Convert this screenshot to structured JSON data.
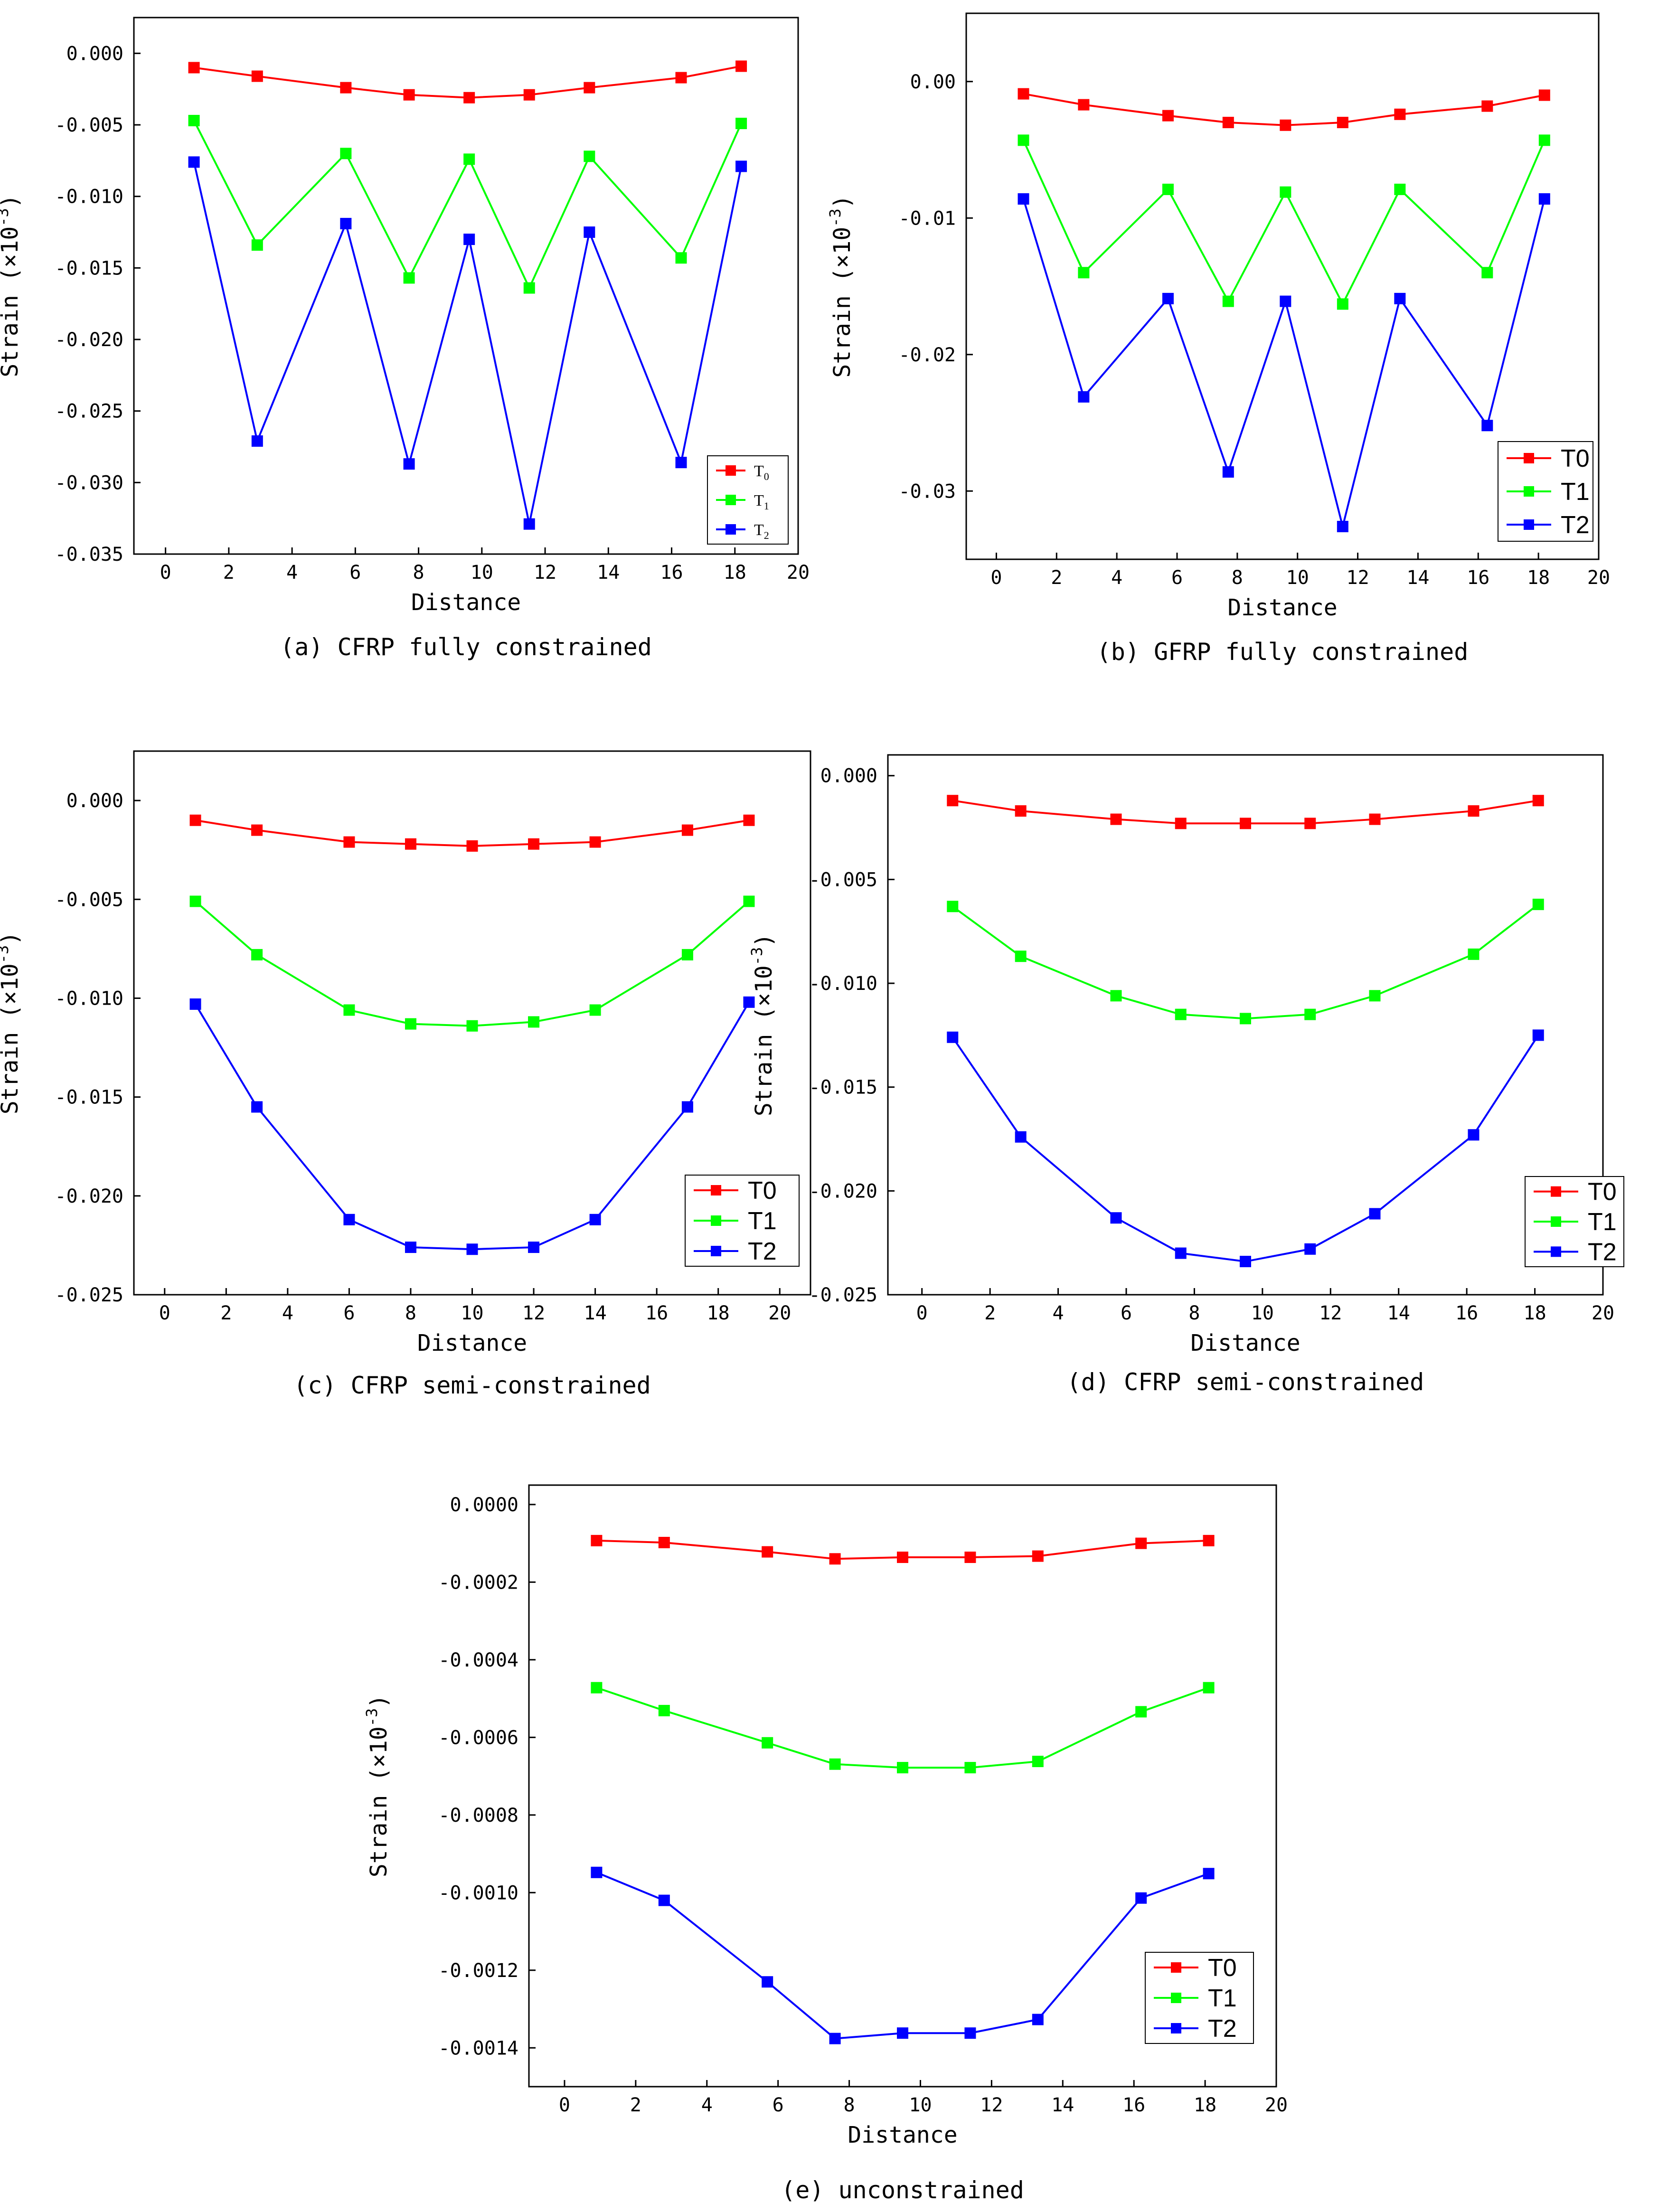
{
  "chart_data": [
    {
      "id": "a",
      "type": "line",
      "caption": "(a) CFRP fully constrained",
      "xlabel": "Distance",
      "ylabel": "Strain",
      "ylabel_unit": "(×10",
      "ylabel_exp": "-3",
      "ylabel_close": ")",
      "xlim": [
        -1,
        20
      ],
      "ylim": [
        -0.035,
        0.0025
      ],
      "xticks": [
        0,
        2,
        4,
        6,
        8,
        10,
        12,
        14,
        16,
        18,
        20
      ],
      "xtick_labels": [
        "0",
        "2",
        "4",
        "6",
        "8",
        "10",
        "12",
        "14",
        "16",
        "18",
        "20"
      ],
      "yticks": [
        0,
        -0.005,
        -0.01,
        -0.015,
        -0.02,
        -0.025,
        -0.03,
        -0.035
      ],
      "ytick_labels": [
        "0.000",
        "-0.005",
        "-0.010",
        "-0.015",
        "-0.020",
        "-0.025",
        "-0.030",
        "-0.035"
      ],
      "x": [
        0.9,
        2.9,
        5.7,
        7.7,
        9.6,
        11.5,
        13.4,
        16.3,
        18.2
      ],
      "series": [
        {
          "name": "T0",
          "legend_main": "T",
          "legend_sub": "0",
          "color": "#ff0000",
          "values": [
            -0.001,
            -0.0016,
            -0.0024,
            -0.0029,
            -0.0031,
            -0.0029,
            -0.0024,
            -0.0017,
            -0.0009
          ]
        },
        {
          "name": "T1",
          "legend_main": "T",
          "legend_sub": "1",
          "color": "#00ff00",
          "values": [
            -0.0047,
            -0.0134,
            -0.007,
            -0.0157,
            -0.0074,
            -0.0164,
            -0.0072,
            -0.0143,
            -0.0049
          ]
        },
        {
          "name": "T2",
          "legend_main": "T",
          "legend_sub": "2",
          "color": "#0000ff",
          "values": [
            -0.0076,
            -0.0271,
            -0.0119,
            -0.0287,
            -0.013,
            -0.0329,
            -0.0125,
            -0.0286,
            -0.0079
          ]
        }
      ],
      "legend_style": "subscript",
      "legend": "bottom-right"
    },
    {
      "id": "b",
      "type": "line",
      "caption": "(b) GFRP fully constrained",
      "xlabel": "Distance",
      "ylabel": "Strain",
      "ylabel_unit": "(×10",
      "ylabel_exp": "-3",
      "ylabel_close": ")",
      "xlim": [
        -1,
        20
      ],
      "ylim": [
        -0.035,
        0.005
      ],
      "xticks": [
        0,
        2,
        4,
        6,
        8,
        10,
        12,
        14,
        16,
        18,
        20
      ],
      "xtick_labels": [
        "0",
        "2",
        "4",
        "6",
        "8",
        "10",
        "12",
        "14",
        "16",
        "18",
        "20"
      ],
      "yticks": [
        0,
        -0.01,
        -0.02,
        -0.03
      ],
      "ytick_labels": [
        "0.00",
        "-0.01",
        "-0.02",
        "-0.03"
      ],
      "x": [
        0.9,
        2.9,
        5.7,
        7.7,
        9.6,
        11.5,
        13.4,
        16.3,
        18.2
      ],
      "series": [
        {
          "name": "T0",
          "color": "#ff0000",
          "values": [
            -0.0009,
            -0.0017,
            -0.0025,
            -0.003,
            -0.0032,
            -0.003,
            -0.0024,
            -0.0018,
            -0.001
          ]
        },
        {
          "name": "T1",
          "color": "#00ff00",
          "values": [
            -0.0043,
            -0.014,
            -0.0079,
            -0.0161,
            -0.0081,
            -0.0163,
            -0.0079,
            -0.014,
            -0.0043
          ]
        },
        {
          "name": "T2",
          "color": "#0000ff",
          "values": [
            -0.0086,
            -0.0231,
            -0.0159,
            -0.0286,
            -0.0161,
            -0.0326,
            -0.0159,
            -0.0252,
            -0.0086
          ]
        }
      ],
      "legend_style": "plain",
      "legend": "bottom-right"
    },
    {
      "id": "c",
      "type": "line",
      "caption": "(c) CFRP semi-constrained",
      "xlabel": "Distance",
      "ylabel": "Strain",
      "ylabel_unit": "(×10",
      "ylabel_exp": "-3",
      "ylabel_close": ")",
      "xlim": [
        -1,
        21
      ],
      "ylim": [
        -0.025,
        0.0025
      ],
      "xticks": [
        0,
        2,
        4,
        6,
        8,
        10,
        12,
        14,
        16,
        18,
        20
      ],
      "xtick_labels": [
        "0",
        "2",
        "4",
        "6",
        "8",
        "10",
        "12",
        "14",
        "16",
        "18",
        "20"
      ],
      "yticks": [
        0,
        -0.005,
        -0.01,
        -0.015,
        -0.02,
        -0.025
      ],
      "ytick_labels": [
        "0.000",
        "-0.005",
        "-0.010",
        "-0.015",
        "-0.020",
        "-0.025"
      ],
      "x": [
        1,
        3,
        6,
        8,
        10,
        12,
        14,
        17,
        19
      ],
      "series": [
        {
          "name": "T0",
          "color": "#ff0000",
          "values": [
            -0.001,
            -0.0015,
            -0.0021,
            -0.0022,
            -0.0023,
            -0.0022,
            -0.0021,
            -0.0015,
            -0.001
          ]
        },
        {
          "name": "T1",
          "color": "#00ff00",
          "values": [
            -0.0051,
            -0.0078,
            -0.0106,
            -0.0113,
            -0.0114,
            -0.0112,
            -0.0106,
            -0.0078,
            -0.0051
          ]
        },
        {
          "name": "T2",
          "color": "#0000ff",
          "values": [
            -0.0103,
            -0.0155,
            -0.0212,
            -0.0226,
            -0.0227,
            -0.0226,
            -0.0212,
            -0.0155,
            -0.0102
          ]
        }
      ],
      "legend_style": "plain",
      "legend": "bottom-right"
    },
    {
      "id": "d",
      "type": "line",
      "caption": "(d) CFRP semi-constrained",
      "xlabel": "Distance",
      "ylabel": "Strain",
      "ylabel_unit": "(×10",
      "ylabel_exp": "-3",
      "ylabel_close": ")",
      "xlim": [
        -1,
        20
      ],
      "ylim": [
        -0.025,
        0.001
      ],
      "xticks": [
        0,
        2,
        4,
        6,
        8,
        10,
        12,
        14,
        16,
        18,
        20
      ],
      "xtick_labels": [
        "0",
        "2",
        "4",
        "6",
        "8",
        "10",
        "12",
        "14",
        "16",
        "18",
        "20"
      ],
      "yticks": [
        0,
        -0.005,
        -0.01,
        -0.015,
        -0.02,
        -0.025
      ],
      "ytick_labels": [
        "0.000",
        "-0.005",
        "-0.010",
        "-0.015",
        "-0.020",
        "-0.025"
      ],
      "x": [
        0.9,
        2.9,
        5.7,
        7.6,
        9.5,
        11.4,
        13.3,
        16.2,
        18.1
      ],
      "series": [
        {
          "name": "T0",
          "color": "#ff0000",
          "values": [
            -0.0012,
            -0.0017,
            -0.0021,
            -0.0023,
            -0.0023,
            -0.0023,
            -0.0021,
            -0.0017,
            -0.0012
          ]
        },
        {
          "name": "T1",
          "color": "#00ff00",
          "values": [
            -0.0063,
            -0.0087,
            -0.0106,
            -0.0115,
            -0.0117,
            -0.0115,
            -0.0106,
            -0.0086,
            -0.0062
          ]
        },
        {
          "name": "T2",
          "color": "#0000ff",
          "values": [
            -0.0126,
            -0.0174,
            -0.0213,
            -0.023,
            -0.0234,
            -0.0228,
            -0.0211,
            -0.0173,
            -0.0125
          ]
        }
      ],
      "legend_style": "plain",
      "legend": "bottom-right"
    },
    {
      "id": "e",
      "type": "line",
      "caption": "(e) unconstrained",
      "xlabel": "Distance",
      "ylabel": "Strain",
      "ylabel_unit": "(×10",
      "ylabel_exp": "-3",
      "ylabel_close": ")",
      "xlim": [
        -1,
        20
      ],
      "ylim": [
        -0.0015,
        5e-05
      ],
      "xticks": [
        0,
        2,
        4,
        6,
        8,
        10,
        12,
        14,
        16,
        18,
        20
      ],
      "xtick_labels": [
        "0",
        "2",
        "4",
        "6",
        "8",
        "10",
        "12",
        "14",
        "16",
        "18",
        "20"
      ],
      "yticks": [
        0,
        -0.0002,
        -0.0004,
        -0.0006,
        -0.0008,
        -0.001,
        -0.0012,
        -0.0014
      ],
      "ytick_labels": [
        "0.0000",
        "-0.0002",
        "-0.0004",
        "-0.0006",
        "-0.0008",
        "-0.0010",
        "-0.0012",
        "-0.0014"
      ],
      "x": [
        0.9,
        2.8,
        5.7,
        7.6,
        9.5,
        11.4,
        13.3,
        16.2,
        18.1
      ],
      "series": [
        {
          "name": "T0",
          "color": "#ff0000",
          "values": [
            -9.3e-05,
            -9.8e-05,
            -0.000122,
            -0.00014,
            -0.000136,
            -0.000136,
            -0.000133,
            -0.0001,
            -9.3e-05
          ]
        },
        {
          "name": "T1",
          "color": "#00ff00",
          "values": [
            -0.000472,
            -0.000531,
            -0.000614,
            -0.000669,
            -0.000678,
            -0.000678,
            -0.000662,
            -0.000534,
            -0.000472
          ]
        },
        {
          "name": "T2",
          "color": "#0000ff",
          "values": [
            -0.000948,
            -0.00102,
            -0.00123,
            -0.001376,
            -0.001362,
            -0.001362,
            -0.001327,
            -0.001014,
            -0.000951
          ]
        }
      ],
      "legend_style": "plain",
      "legend": "bottom-right"
    }
  ]
}
